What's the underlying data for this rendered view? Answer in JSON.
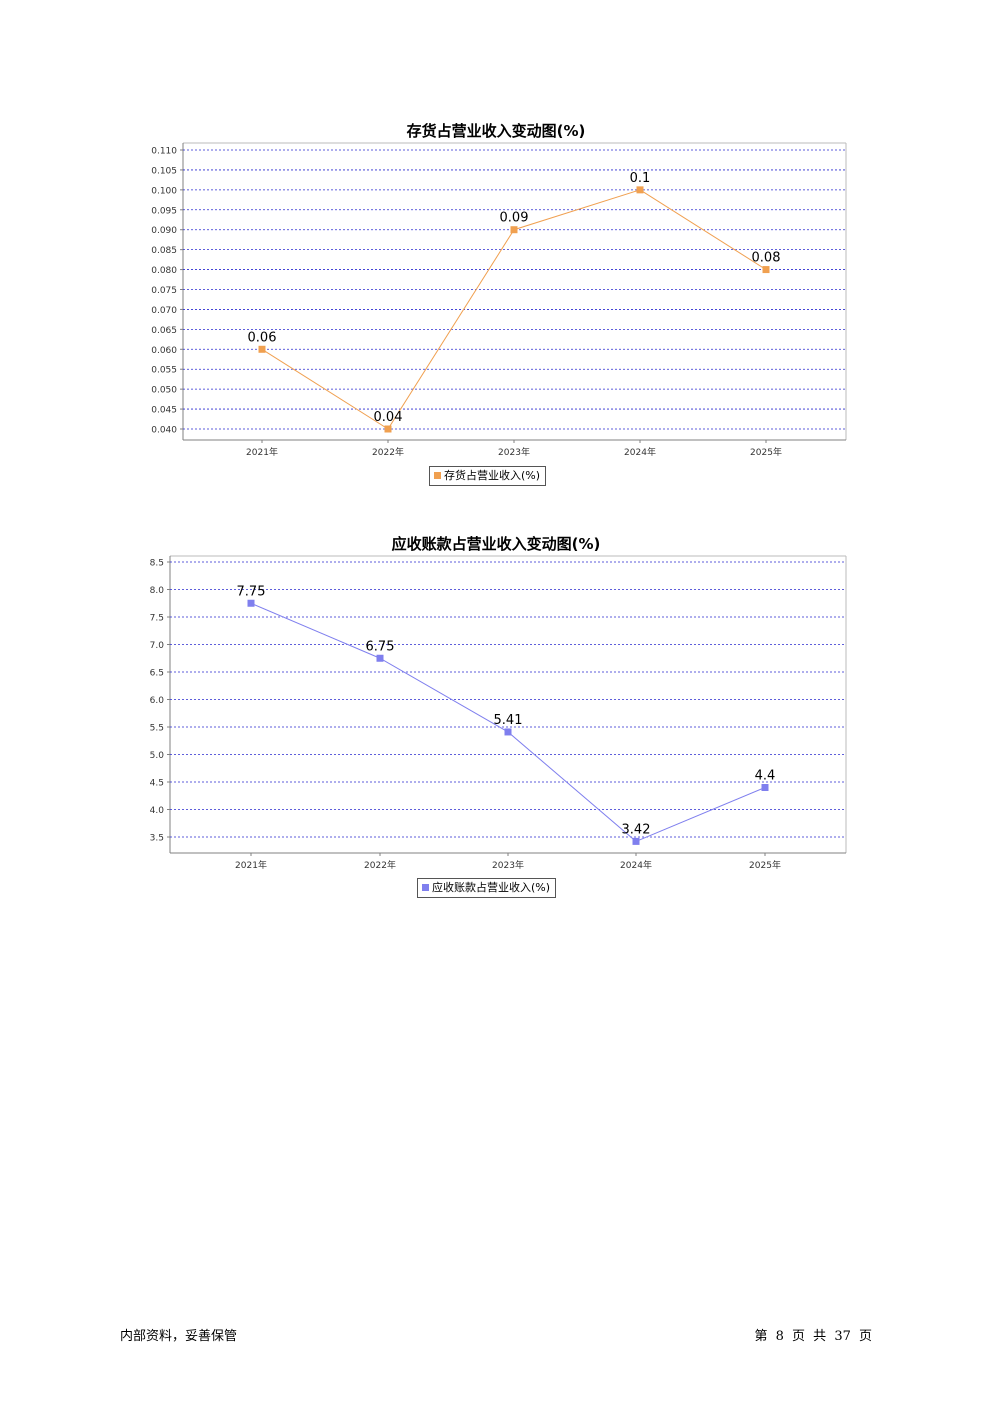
{
  "chart_data": [
    {
      "type": "line",
      "title": "存货占营业收入变动图(%)",
      "categories": [
        "2021年",
        "2022年",
        "2023年",
        "2024年",
        "2025年"
      ],
      "series": [
        {
          "name": "存货占营业收入(%)",
          "values": [
            0.06,
            0.04,
            0.09,
            0.1,
            0.08
          ],
          "color": "#f0a050"
        }
      ],
      "data_labels": [
        "0.06",
        "0.04",
        "0.09",
        "0.1",
        "0.08"
      ],
      "y_ticks": [
        "0.040",
        "0.045",
        "0.050",
        "0.055",
        "0.060",
        "0.065",
        "0.070",
        "0.075",
        "0.080",
        "0.085",
        "0.090",
        "0.095",
        "0.100",
        "0.105",
        "0.110"
      ],
      "ylim": [
        0.04,
        0.11
      ],
      "grid": true,
      "legend_position": "bottom"
    },
    {
      "type": "line",
      "title": "应收账款占营业收入变动图(%)",
      "categories": [
        "2021年",
        "2022年",
        "2023年",
        "2024年",
        "2025年"
      ],
      "series": [
        {
          "name": "应收账款占营业收入(%)",
          "values": [
            7.75,
            6.75,
            5.41,
            3.42,
            4.4
          ],
          "color": "#7f7fee"
        }
      ],
      "data_labels": [
        "7.75",
        "6.75",
        "5.41",
        "3.42",
        "4.4"
      ],
      "y_ticks": [
        "3.5",
        "4.0",
        "4.5",
        "5.0",
        "5.5",
        "6.0",
        "6.5",
        "7.0",
        "7.5",
        "8.0",
        "8.5"
      ],
      "ylim": [
        3.5,
        8.5
      ],
      "grid": true,
      "legend_position": "bottom"
    }
  ],
  "footer": {
    "left": "内部资料，妥善保管",
    "right": "第 8 页 共 37 页"
  },
  "colors": {
    "grid": "#2a2ad0",
    "axis": "#808080"
  }
}
